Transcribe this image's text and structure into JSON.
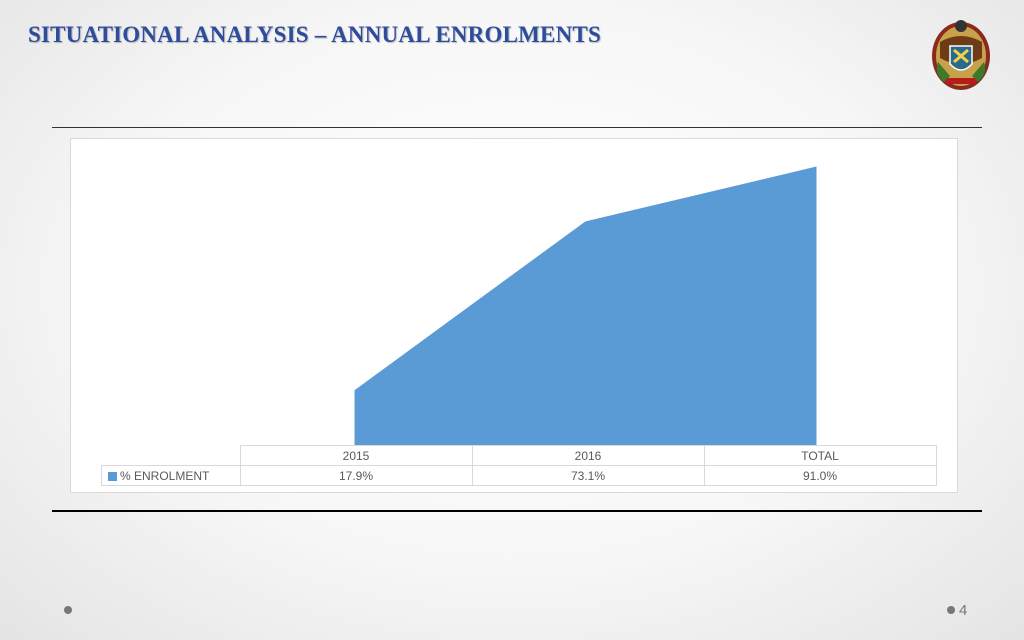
{
  "slide": {
    "title": "SITUATIONAL ANALYSIS – ANNUAL ENROLMENTS",
    "page_number": "4",
    "logo_icon": "coat-of-arms-icon"
  },
  "colors": {
    "title": "#2e4c9c",
    "area_fill": "#5b9bd5",
    "table_border": "#d9d9d9",
    "table_text": "#595959"
  },
  "chart_data": {
    "type": "area",
    "categories": [
      "2015",
      "2016",
      "TOTAL"
    ],
    "series": [
      {
        "name": "% ENROLMENT",
        "values": [
          17.9,
          73.1,
          91.0
        ],
        "labels": [
          "17.9%",
          "73.1%",
          "91.0%"
        ]
      }
    ],
    "ylim": [
      0,
      100
    ],
    "grid": false,
    "legend": "data-table"
  }
}
